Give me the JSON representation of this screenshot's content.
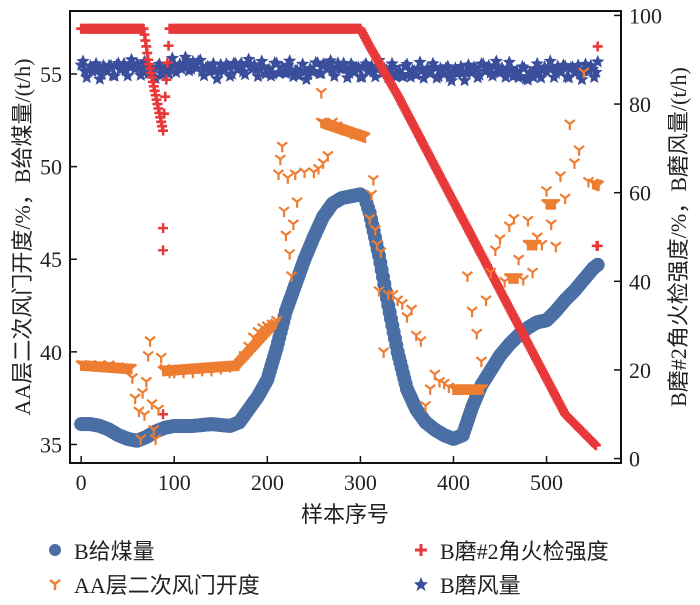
{
  "chart_data": {
    "type": "scatter",
    "title": "",
    "xlabel": "样本序号",
    "ylabel_left": "AA层二次风门开度/%，B给煤量/(t/h)",
    "ylabel_right": "B磨#2角火检强度/%，B磨风量/(t/h)",
    "xlim": [
      -12,
      580
    ],
    "ylim_left": [
      34,
      58.4
    ],
    "ylim_right": [
      -1,
      101
    ],
    "xticks": [
      0,
      100,
      200,
      300,
      400,
      500
    ],
    "yticks_left": [
      35,
      40,
      45,
      50,
      55
    ],
    "yticks_right": [
      0,
      20,
      40,
      60,
      80,
      100
    ],
    "grid": false,
    "legend_position": "bottom",
    "series": [
      {
        "name": "B给煤量",
        "axis": "left",
        "marker": "circle",
        "color": "#4a6fa5",
        "x": [
          0,
          10,
          20,
          30,
          40,
          50,
          60,
          70,
          80,
          90,
          100,
          120,
          140,
          160,
          170,
          180,
          190,
          200,
          210,
          220,
          230,
          240,
          250,
          260,
          270,
          280,
          290,
          300,
          305,
          310,
          320,
          330,
          340,
          350,
          360,
          370,
          380,
          390,
          400,
          410,
          420,
          430,
          440,
          450,
          460,
          470,
          480,
          490,
          500,
          510,
          520,
          530,
          540,
          550,
          555
        ],
        "y": [
          36.1,
          36.1,
          36.0,
          35.8,
          35.5,
          35.3,
          35.2,
          35.4,
          35.7,
          35.9,
          36.0,
          36.0,
          36.1,
          36.0,
          36.2,
          36.9,
          37.6,
          38.5,
          40.2,
          42.2,
          43.6,
          45.0,
          46.2,
          47.3,
          48.0,
          48.3,
          48.4,
          48.5,
          48.3,
          47.5,
          45.2,
          42.5,
          40.0,
          38.0,
          36.9,
          36.2,
          35.8,
          35.5,
          35.3,
          35.5,
          37.0,
          38.2,
          39.0,
          39.8,
          40.4,
          40.9,
          41.3,
          41.6,
          41.7,
          42.2,
          42.8,
          43.3,
          43.9,
          44.5,
          44.7
        ]
      },
      {
        "name": "AA层二次风门开度",
        "axis": "left",
        "marker": "tri_down",
        "color": "#ed7d31",
        "x": [
          0,
          10,
          20,
          30,
          40,
          50,
          55,
          58,
          62,
          64,
          66,
          68,
          70,
          72,
          74,
          76,
          78,
          80,
          83,
          86,
          90,
          95,
          100,
          110,
          120,
          130,
          140,
          150,
          160,
          170,
          175,
          180,
          185,
          190,
          195,
          200,
          205,
          210,
          212,
          214,
          216,
          218,
          220,
          222,
          224,
          226,
          228,
          230,
          232,
          240,
          250,
          255,
          260,
          265,
          258,
          270,
          275,
          280,
          290,
          300,
          305,
          310,
          312,
          314,
          316,
          318,
          320,
          322,
          325,
          330,
          335,
          340,
          345,
          350,
          355,
          360,
          365,
          370,
          375,
          380,
          385,
          390,
          395,
          400,
          405,
          410,
          415,
          420,
          425,
          430,
          435,
          440,
          445,
          450,
          455,
          460,
          465,
          470,
          475,
          480,
          485,
          490,
          495,
          500,
          505,
          510,
          515,
          520,
          525,
          530,
          535,
          540,
          545,
          550,
          555
        ],
        "y": [
          39.3,
          39.3,
          39.3,
          39.3,
          39.2,
          39.1,
          38.6,
          37.5,
          36.8,
          35.3,
          37.8,
          36.6,
          38.4,
          39.8,
          40.6,
          37.2,
          35.8,
          35.3,
          36.9,
          39.7,
          39.1,
          38.9,
          38.9,
          38.9,
          38.9,
          39.0,
          39.0,
          39.1,
          39.2,
          39.4,
          39.8,
          40.3,
          40.8,
          41.1,
          41.3,
          41.4,
          41.5,
          41.7,
          49.6,
          50.4,
          51.1,
          47.6,
          46.3,
          49.4,
          45.3,
          44.1,
          46.9,
          49.6,
          48.1,
          49.7,
          49.7,
          49.9,
          50.2,
          50.6,
          54.0,
          52.4,
          52.2,
          52.0,
          51.8,
          51.7,
          51.6,
          47.2,
          48.5,
          49.3,
          46.6,
          45.8,
          43.3,
          45.4,
          40.0,
          43.1,
          43.1,
          42.8,
          42.6,
          41.9,
          42.3,
          40.9,
          40.6,
          37.1,
          38.0,
          38.8,
          38.4,
          38.3,
          38.1,
          38.0,
          38.0,
          38.0,
          44.1,
          42.2,
          41.0,
          39.5,
          42.8,
          44.3,
          45.5,
          46.1,
          43.8,
          46.8,
          47.2,
          45.0,
          43.9,
          47.1,
          44.3,
          46.2,
          45.8,
          48.7,
          46.9,
          45.7,
          49.5,
          48.3,
          52.3,
          50.2,
          50.9,
          55.1,
          49.2,
          49.1,
          49.0
        ]
      },
      {
        "name": "B磨#2角火检强度",
        "axis": "right",
        "marker": "plus",
        "color": "#e8393a",
        "x": [
          0,
          20,
          40,
          60,
          67,
          70,
          72,
          74,
          76,
          78,
          80,
          82,
          84,
          86,
          88,
          88,
          88,
          88,
          95,
          120,
          150,
          180,
          210,
          240,
          270,
          300,
          310,
          340,
          370,
          400,
          430,
          460,
          490,
          520,
          553,
          555,
          555
        ],
        "y": [
          97,
          97,
          97,
          97,
          97,
          93,
          90,
          88,
          86,
          84,
          82,
          80,
          78,
          76,
          74,
          52,
          47,
          10,
          97,
          97,
          97,
          97,
          97,
          97,
          97,
          97,
          93,
          82,
          70,
          58,
          46,
          34,
          22,
          10,
          3,
          93,
          48
        ]
      },
      {
        "name": "B磨风量",
        "axis": "right",
        "marker": "star",
        "color": "#3a4e9c",
        "x": [
          0,
          20,
          40,
          60,
          80,
          100,
          120,
          140,
          160,
          180,
          200,
          220,
          240,
          260,
          280,
          300,
          320,
          340,
          360,
          380,
          400,
          420,
          440,
          460,
          480,
          500,
          520,
          540,
          555
        ],
        "y": [
          88,
          87.5,
          88,
          88.5,
          87,
          88.5,
          89,
          87.5,
          88,
          88.5,
          87.5,
          88,
          87,
          88.5,
          88,
          87.5,
          88,
          87,
          87.5,
          87.5,
          87,
          87.5,
          88,
          87.5,
          86.5,
          88,
          87.5,
          87.5,
          88
        ]
      }
    ]
  },
  "legend": {
    "items": [
      {
        "label": "B给煤量",
        "marker": "circle",
        "color": "#4a6fa5"
      },
      {
        "label": "B磨#2角火检强度",
        "marker": "plus",
        "color": "#e8393a"
      },
      {
        "label": "AA层二次风门开度",
        "marker": "tri_down",
        "color": "#ed7d31"
      },
      {
        "label": "B磨风量",
        "marker": "star",
        "color": "#3a4e9c"
      }
    ]
  }
}
